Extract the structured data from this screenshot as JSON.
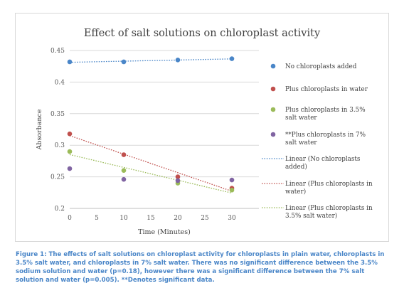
{
  "chart_data": {
    "type": "scatter",
    "title": "Effect of salt solutions on chloroplast activity",
    "xlabel": "Time (Minutes)",
    "ylabel": "Absorbance",
    "xlim": [
      0,
      35
    ],
    "ylim": [
      0.2,
      0.45
    ],
    "x_ticks": [
      0,
      5,
      10,
      15,
      20,
      25,
      30
    ],
    "y_ticks": [
      0.2,
      0.25,
      0.3,
      0.35,
      0.4,
      0.45
    ],
    "y_tick_labels": [
      "0.2",
      "0.25",
      "0.3",
      "0.35",
      "0.4",
      "0.45"
    ],
    "grid": "horizontal",
    "legend_position": "right",
    "series": [
      {
        "name": "No chloroplasts added",
        "color": "#4a86c8",
        "x": [
          0,
          10,
          20,
          30
        ],
        "y": [
          0.432,
          0.432,
          0.435,
          0.437
        ]
      },
      {
        "name": "Plus chloroplasts in water",
        "color": "#c0504d",
        "x": [
          0,
          10,
          20,
          30
        ],
        "y": [
          0.318,
          0.285,
          0.25,
          0.232
        ]
      },
      {
        "name": "Plus chloroplasts in 3.5% salt water",
        "color": "#9bbb59",
        "x": [
          0,
          10,
          20,
          30
        ],
        "y": [
          0.29,
          0.26,
          0.24,
          0.229
        ]
      },
      {
        "name": "**Plus chloroplasts in 7% salt water",
        "color": "#8064a2",
        "x": [
          0,
          10,
          20,
          30
        ],
        "y": [
          0.263,
          0.246,
          0.244,
          0.245
        ]
      }
    ],
    "trendlines": [
      {
        "name": "Linear (No chloroplasts added)",
        "color": "#4a86c8",
        "series_index": 0
      },
      {
        "name": "Linear (Plus chloroplasts in water)",
        "color": "#c0504d",
        "series_index": 1
      },
      {
        "name": "Linear (Plus chloroplasts in 3.5% salt water)",
        "color": "#9bbb59",
        "series_index": 2
      }
    ],
    "legend_lines": [
      [
        "No chloroplasts added"
      ],
      [
        "Plus chloroplasts in water"
      ],
      [
        "Plus chloroplasts in 3.5%",
        "salt water"
      ],
      [
        "**Plus chloroplasts in 7%",
        "salt water"
      ],
      [
        "Linear (No chloroplasts",
        "added)"
      ],
      [
        "Linear (Plus chloroplasts in",
        "water)"
      ],
      [
        "Linear (Plus chloroplasts in",
        "3.5% salt water)"
      ]
    ]
  },
  "caption": "Figure 1: The effects of salt solutions on chloroplast activity for chloroplasts in plain water, chloroplasts in 3.5% salt water, and chloroplasts in 7% salt water. There was no significant difference between the 3.5% sodium solution and water (p=0.18), however there was a significant difference between the 7% salt solution and water (p=0.005). **Denotes significant data."
}
